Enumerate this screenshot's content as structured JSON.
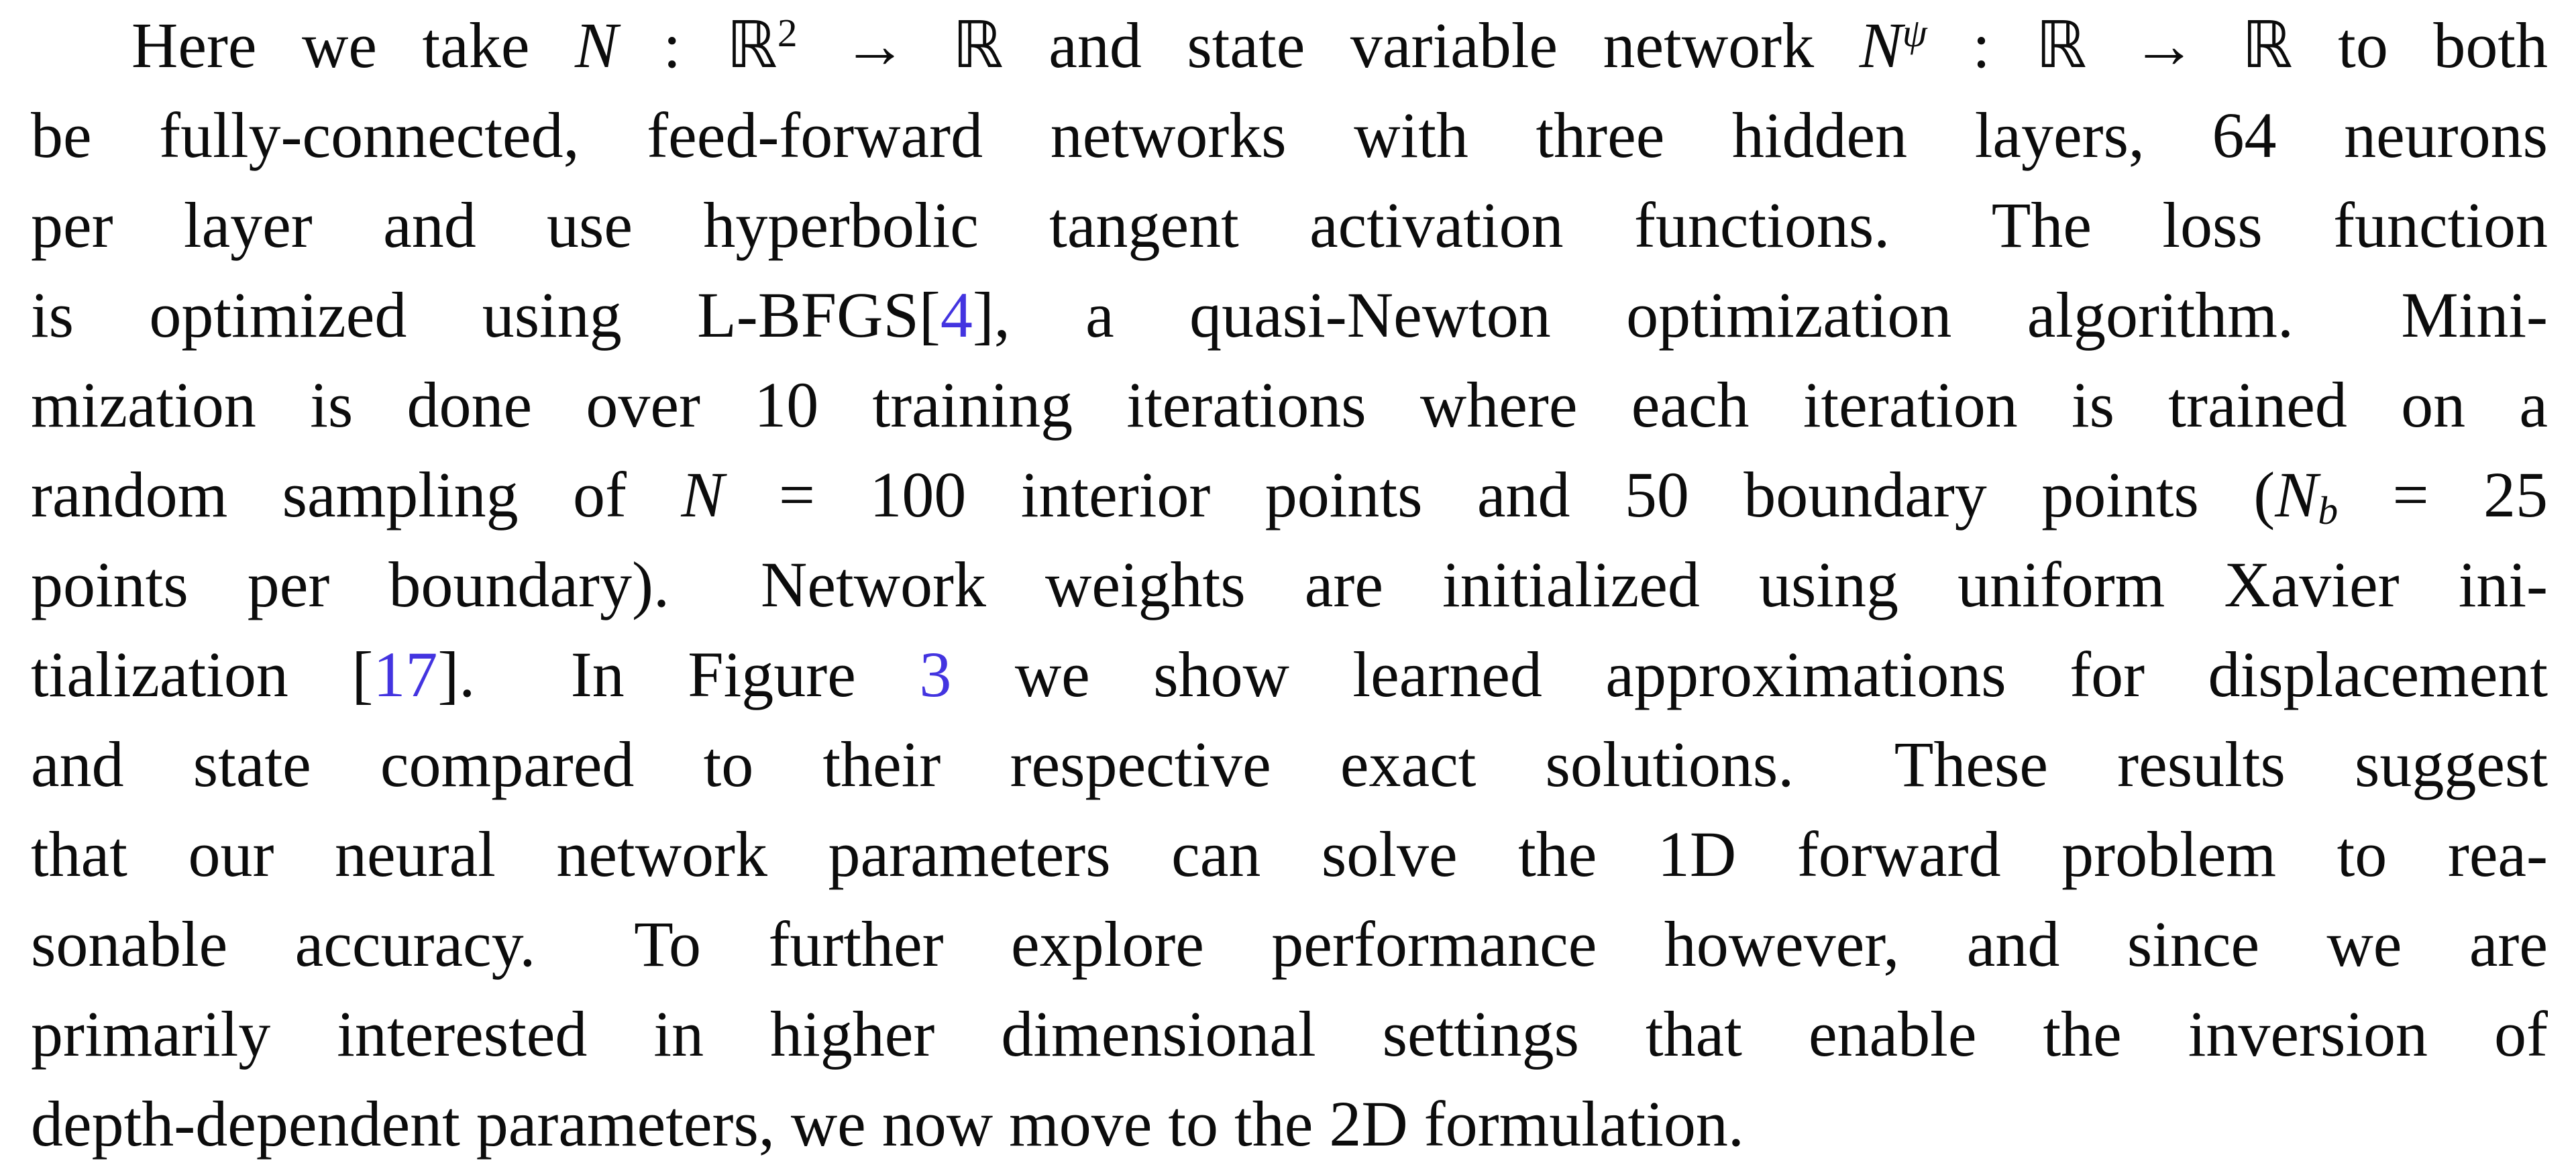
{
  "page": {
    "background_color": "#ffffff",
    "text_color": "#0c0c0c",
    "cite_color": "#4334e0"
  },
  "paragraph": {
    "lines": [
      {
        "indent": true,
        "segments": [
          {
            "t": "Here we take ",
            "s": "plain"
          },
          {
            "t": "N",
            "s": "cal",
            "name": "mathcal-N"
          },
          {
            "t": " : ",
            "s": "plain"
          },
          {
            "t": "ℝ",
            "s": "bb",
            "name": "blackboard-R"
          },
          {
            "t": "2",
            "s": "sup"
          },
          {
            "t": " → ",
            "s": "plain"
          },
          {
            "t": "ℝ",
            "s": "bb",
            "name": "blackboard-R"
          },
          {
            "t": " and state variable network ",
            "s": "plain"
          },
          {
            "t": "N",
            "s": "cal",
            "name": "mathcal-N"
          },
          {
            "t": "ψ",
            "s": "supit",
            "name": "psi-superscript"
          },
          {
            "t": " : ",
            "s": "plain"
          },
          {
            "t": "ℝ",
            "s": "bb",
            "name": "blackboard-R"
          },
          {
            "t": " → ",
            "s": "plain"
          },
          {
            "t": "ℝ",
            "s": "bb",
            "name": "blackboard-R"
          },
          {
            "t": " to both",
            "s": "plain"
          }
        ]
      },
      {
        "segments": [
          {
            "t": "be fully-connected, feed-forward networks with three hidden layers, 64 neurons",
            "s": "plain"
          }
        ]
      },
      {
        "segments": [
          {
            "t": "per layer and use hyperbolic tangent activation functions.  The loss function",
            "s": "plain"
          }
        ]
      },
      {
        "segments": [
          {
            "t": "is optimized using L-BFGS[",
            "s": "plain"
          },
          {
            "t": "4",
            "s": "cite",
            "name": "citation-link-4"
          },
          {
            "t": "], a quasi-Newton optimization algorithm.  Mini-",
            "s": "plain"
          }
        ]
      },
      {
        "segments": [
          {
            "t": "mization is done over 10 training iterations where each iteration is trained on a",
            "s": "plain"
          }
        ]
      },
      {
        "segments": [
          {
            "t": "random sampling of ",
            "s": "plain"
          },
          {
            "t": "N",
            "s": "it",
            "name": "variable-N"
          },
          {
            "t": " = 100 interior points and 50 boundary points (",
            "s": "plain"
          },
          {
            "t": "N",
            "s": "it",
            "name": "variable-N"
          },
          {
            "t": "b",
            "s": "sub",
            "name": "subscript-b"
          },
          {
            "t": " = 25",
            "s": "plain"
          }
        ]
      },
      {
        "segments": [
          {
            "t": "points per boundary).  Network weights are initialized using uniform Xavier ini-",
            "s": "plain"
          }
        ]
      },
      {
        "segments": [
          {
            "t": "tialization [",
            "s": "plain"
          },
          {
            "t": "17",
            "s": "cite",
            "name": "citation-link-17"
          },
          {
            "t": "].  In Figure ",
            "s": "plain"
          },
          {
            "t": "3",
            "s": "cite",
            "name": "figure-ref-link-3"
          },
          {
            "t": " we show learned approximations for displacement",
            "s": "plain"
          }
        ]
      },
      {
        "segments": [
          {
            "t": "and state compared to their respective exact solutions.  These results suggest",
            "s": "plain"
          }
        ]
      },
      {
        "segments": [
          {
            "t": "that our neural network parameters can solve the 1D forward problem to rea-",
            "s": "plain"
          }
        ]
      },
      {
        "segments": [
          {
            "t": "sonable accuracy.  To further explore performance however, and since we are",
            "s": "plain"
          }
        ]
      },
      {
        "segments": [
          {
            "t": "primarily interested in higher dimensional settings that enable the inversion of",
            "s": "plain"
          }
        ]
      },
      {
        "last": true,
        "segments": [
          {
            "t": "depth-dependent parameters, we now move to the 2D formulation.",
            "s": "plain"
          }
        ]
      }
    ]
  }
}
